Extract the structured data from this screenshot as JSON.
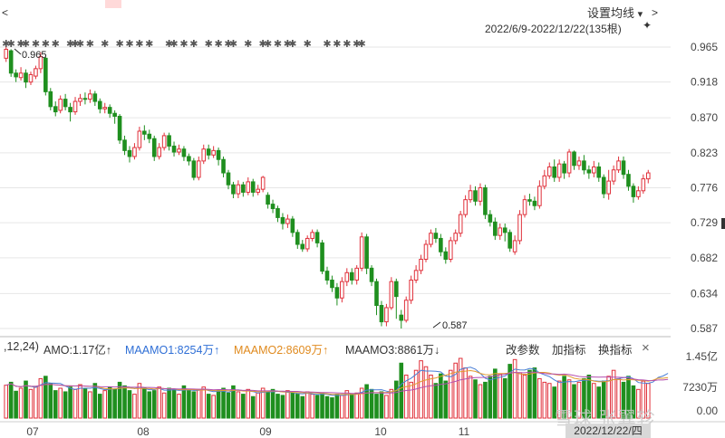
{
  "header": {
    "settings_label": "设置均线",
    "settings_icon": "chevron-down-icon",
    "range_label": "2022/6/9-2022/12/22(135根)",
    "pin_icon": "pin-icon",
    "scroll_left_icon": "chevron-left-icon",
    "scroll_right_icon": "chevron-right-icon"
  },
  "volume_bar": {
    "params": ",12,24)",
    "amo": "AMO:1.17亿↑",
    "maamo1": "MAAMO1:8254万↑",
    "maamo2": "MAAMO2:8609万↑",
    "maamo3": "MAAMO3:8861万↓",
    "btn_params": "改参数",
    "btn_add": "加指标",
    "btn_switch": "换指标",
    "close_icon": "close-icon"
  },
  "date_bubble": "2022/12/22/四",
  "watermark": "雪球 张翼轸",
  "colors": {
    "up": "#e0303a",
    "down": "#1f8f1f",
    "ma1": "#4a7fd6",
    "ma2": "#e39a2e",
    "ma3": "#b44fb0",
    "grid": "#e6e6e6"
  },
  "chart_data": [
    {
      "type": "candlestick",
      "price_axis": {
        "ticks": [
          "0.965",
          "0.918",
          "0.870",
          "0.823",
          "0.776",
          "0.729",
          "0.682",
          "0.634",
          "0.587"
        ],
        "ylim": [
          0.587,
          0.965
        ]
      },
      "x_axis": {
        "labels": [
          "07",
          "08",
          "09",
          "10",
          "11"
        ]
      },
      "annotations": {
        "high": "0.965",
        "low": "0.587"
      },
      "candles": [
        [
          0.95,
          0.962,
          0.965,
          0.945
        ],
        [
          0.96,
          0.93,
          0.962,
          0.925
        ],
        [
          0.93,
          0.925,
          0.935,
          0.918
        ],
        [
          0.924,
          0.93,
          0.938,
          0.92
        ],
        [
          0.93,
          0.918,
          0.935,
          0.91
        ],
        [
          0.918,
          0.928,
          0.932,
          0.914
        ],
        [
          0.926,
          0.936,
          0.94,
          0.922
        ],
        [
          0.936,
          0.952,
          0.958,
          0.93
        ],
        [
          0.95,
          0.905,
          0.952,
          0.9
        ],
        [
          0.905,
          0.885,
          0.91,
          0.88
        ],
        [
          0.885,
          0.878,
          0.892,
          0.872
        ],
        [
          0.88,
          0.895,
          0.9,
          0.876
        ],
        [
          0.895,
          0.885,
          0.902,
          0.88
        ],
        [
          0.884,
          0.878,
          0.89,
          0.865
        ],
        [
          0.878,
          0.892,
          0.898,
          0.874
        ],
        [
          0.892,
          0.896,
          0.902,
          0.886
        ],
        [
          0.896,
          0.895,
          0.904,
          0.888
        ],
        [
          0.895,
          0.902,
          0.908,
          0.89
        ],
        [
          0.902,
          0.892,
          0.906,
          0.886
        ],
        [
          0.892,
          0.882,
          0.896,
          0.876
        ],
        [
          0.882,
          0.884,
          0.89,
          0.876
        ],
        [
          0.884,
          0.876,
          0.888,
          0.87
        ],
        [
          0.876,
          0.872,
          0.88,
          0.862
        ],
        [
          0.872,
          0.84,
          0.875,
          0.835
        ],
        [
          0.84,
          0.826,
          0.846,
          0.82
        ],
        [
          0.826,
          0.818,
          0.832,
          0.81
        ],
        [
          0.818,
          0.83,
          0.836,
          0.814
        ],
        [
          0.83,
          0.852,
          0.858,
          0.826
        ],
        [
          0.852,
          0.848,
          0.86,
          0.84
        ],
        [
          0.848,
          0.842,
          0.854,
          0.836
        ],
        [
          0.842,
          0.818,
          0.846,
          0.812
        ],
        [
          0.818,
          0.83,
          0.836,
          0.814
        ],
        [
          0.83,
          0.846,
          0.85,
          0.826
        ],
        [
          0.846,
          0.832,
          0.85,
          0.826
        ],
        [
          0.832,
          0.824,
          0.838,
          0.818
        ],
        [
          0.824,
          0.828,
          0.834,
          0.82
        ],
        [
          0.828,
          0.818,
          0.832,
          0.812
        ],
        [
          0.818,
          0.812,
          0.822,
          0.806
        ],
        [
          0.812,
          0.79,
          0.816,
          0.786
        ],
        [
          0.79,
          0.812,
          0.818,
          0.786
        ],
        [
          0.812,
          0.828,
          0.834,
          0.808
        ],
        [
          0.828,
          0.82,
          0.834,
          0.814
        ],
        [
          0.82,
          0.826,
          0.832,
          0.816
        ],
        [
          0.826,
          0.814,
          0.83,
          0.806
        ],
        [
          0.814,
          0.796,
          0.818,
          0.79
        ],
        [
          0.796,
          0.78,
          0.8,
          0.774
        ],
        [
          0.78,
          0.768,
          0.784,
          0.762
        ],
        [
          0.768,
          0.78,
          0.786,
          0.762
        ],
        [
          0.78,
          0.77,
          0.784,
          0.764
        ],
        [
          0.77,
          0.784,
          0.79,
          0.766
        ],
        [
          0.784,
          0.77,
          0.788,
          0.764
        ],
        [
          0.77,
          0.774,
          0.78,
          0.766
        ],
        [
          0.774,
          0.79,
          0.792,
          0.77
        ],
        [
          0.766,
          0.754,
          0.77,
          0.748
        ],
        [
          0.754,
          0.748,
          0.76,
          0.742
        ],
        [
          0.748,
          0.736,
          0.752,
          0.73
        ],
        [
          0.736,
          0.728,
          0.742,
          0.72
        ],
        [
          0.728,
          0.734,
          0.74,
          0.722
        ],
        [
          0.734,
          0.716,
          0.738,
          0.71
        ],
        [
          0.716,
          0.7,
          0.72,
          0.694
        ],
        [
          0.7,
          0.694,
          0.706,
          0.69
        ],
        [
          0.694,
          0.708,
          0.712,
          0.69
        ],
        [
          0.708,
          0.716,
          0.72,
          0.704
        ],
        [
          0.716,
          0.702,
          0.72,
          0.696
        ],
        [
          0.702,
          0.664,
          0.706,
          0.66
        ],
        [
          0.664,
          0.652,
          0.67,
          0.646
        ],
        [
          0.652,
          0.642,
          0.658,
          0.636
        ],
        [
          0.642,
          0.628,
          0.648,
          0.618
        ],
        [
          0.628,
          0.65,
          0.656,
          0.622
        ],
        [
          0.65,
          0.662,
          0.668,
          0.644
        ],
        [
          0.662,
          0.652,
          0.668,
          0.646
        ],
        [
          0.652,
          0.668,
          0.672,
          0.646
        ],
        [
          0.668,
          0.71,
          0.716,
          0.664
        ],
        [
          0.71,
          0.668,
          0.714,
          0.66
        ],
        [
          0.668,
          0.65,
          0.672,
          0.644
        ],
        [
          0.65,
          0.618,
          0.654,
          0.605
        ],
        [
          0.618,
          0.596,
          0.624,
          0.59
        ],
        [
          0.596,
          0.615,
          0.62,
          0.59
        ],
        [
          0.615,
          0.65,
          0.656,
          0.612
        ],
        [
          0.65,
          0.63,
          0.654,
          0.6
        ],
        [
          0.605,
          0.598,
          0.612,
          0.587
        ],
        [
          0.598,
          0.625,
          0.63,
          0.595
        ],
        [
          0.625,
          0.652,
          0.658,
          0.62
        ],
        [
          0.652,
          0.665,
          0.672,
          0.648
        ],
        [
          0.665,
          0.68,
          0.686,
          0.66
        ],
        [
          0.68,
          0.7,
          0.706,
          0.676
        ],
        [
          0.7,
          0.715,
          0.72,
          0.696
        ],
        [
          0.715,
          0.708,
          0.722,
          0.702
        ],
        [
          0.708,
          0.69,
          0.714,
          0.684
        ],
        [
          0.69,
          0.68,
          0.696,
          0.674
        ],
        [
          0.68,
          0.705,
          0.71,
          0.676
        ],
        [
          0.705,
          0.715,
          0.72,
          0.7
        ],
        [
          0.715,
          0.74,
          0.745,
          0.71
        ],
        [
          0.74,
          0.76,
          0.766,
          0.736
        ],
        [
          0.76,
          0.772,
          0.78,
          0.756
        ],
        [
          0.772,
          0.758,
          0.778,
          0.752
        ],
        [
          0.758,
          0.776,
          0.782,
          0.752
        ],
        [
          0.776,
          0.74,
          0.78,
          0.734
        ],
        [
          0.74,
          0.73,
          0.746,
          0.724
        ],
        [
          0.73,
          0.712,
          0.736,
          0.706
        ],
        [
          0.712,
          0.722,
          0.728,
          0.706
        ],
        [
          0.722,
          0.716,
          0.728,
          0.704
        ],
        [
          0.716,
          0.695,
          0.72,
          0.69
        ],
        [
          0.69,
          0.705,
          0.712,
          0.686
        ],
        [
          0.705,
          0.74,
          0.746,
          0.7
        ],
        [
          0.74,
          0.76,
          0.766,
          0.736
        ],
        [
          0.76,
          0.758,
          0.768,
          0.752
        ],
        [
          0.758,
          0.752,
          0.764,
          0.746
        ],
        [
          0.752,
          0.778,
          0.786,
          0.748
        ],
        [
          0.778,
          0.792,
          0.8,
          0.774
        ],
        [
          0.792,
          0.804,
          0.81,
          0.788
        ],
        [
          0.804,
          0.79,
          0.814,
          0.784
        ],
        [
          0.79,
          0.808,
          0.814,
          0.784
        ],
        [
          0.808,
          0.796,
          0.812,
          0.788
        ],
        [
          0.796,
          0.824,
          0.828,
          0.79
        ],
        [
          0.824,
          0.806,
          0.826,
          0.8
        ],
        [
          0.806,
          0.812,
          0.818,
          0.8
        ],
        [
          0.812,
          0.8,
          0.82,
          0.794
        ],
        [
          0.8,
          0.796,
          0.806,
          0.788
        ],
        [
          0.796,
          0.804,
          0.812,
          0.79
        ],
        [
          0.804,
          0.79,
          0.81,
          0.784
        ],
        [
          0.79,
          0.768,
          0.794,
          0.762
        ],
        [
          0.768,
          0.785,
          0.8,
          0.76
        ],
        [
          0.785,
          0.8,
          0.806,
          0.78
        ],
        [
          0.8,
          0.812,
          0.818,
          0.796
        ],
        [
          0.812,
          0.794,
          0.818,
          0.788
        ],
        [
          0.794,
          0.778,
          0.8,
          0.772
        ],
        [
          0.778,
          0.764,
          0.782,
          0.756
        ],
        [
          0.764,
          0.772,
          0.778,
          0.76
        ],
        [
          0.772,
          0.788,
          0.794,
          0.768
        ],
        [
          0.788,
          0.796,
          0.8,
          0.782
        ]
      ],
      "marker_rows": "xx xx x x x  xxx x  x  x x x x   xx x x  x x xx  x  xx x xx  x   x x x xx"
    },
    {
      "type": "bar",
      "volume_axis": {
        "ticks": [
          "1.45亿",
          "7230万",
          "0.00"
        ]
      },
      "volume": [
        0.55,
        0.6,
        0.45,
        0.5,
        0.62,
        0.48,
        0.52,
        0.66,
        0.7,
        0.58,
        0.46,
        0.5,
        0.44,
        0.52,
        0.48,
        0.56,
        0.5,
        0.44,
        0.58,
        0.4,
        0.46,
        0.52,
        0.48,
        0.6,
        0.54,
        0.46,
        0.4,
        0.58,
        0.5,
        0.44,
        0.46,
        0.52,
        0.42,
        0.5,
        0.48,
        0.4,
        0.54,
        0.46,
        0.44,
        0.48,
        0.52,
        0.4,
        0.38,
        0.46,
        0.5,
        0.42,
        0.54,
        0.44,
        0.4,
        0.48,
        0.36,
        0.42,
        0.5,
        0.44,
        0.48,
        0.4,
        0.38,
        0.46,
        0.42,
        0.4,
        0.36,
        0.44,
        0.4,
        0.38,
        0.42,
        0.36,
        0.34,
        0.4,
        0.38,
        0.46,
        0.4,
        0.42,
        0.5,
        0.56,
        0.48,
        0.4,
        0.44,
        0.38,
        0.48,
        0.62,
        0.92,
        0.72,
        0.6,
        0.8,
        0.96,
        0.86,
        0.72,
        0.58,
        0.74,
        0.62,
        0.8,
        0.92,
        1.0,
        0.84,
        0.7,
        0.64,
        0.56,
        0.6,
        0.7,
        0.82,
        0.74,
        0.66,
        0.9,
        0.98,
        0.76,
        0.72,
        0.8,
        0.84,
        0.66,
        0.6,
        0.58,
        0.52,
        0.62,
        0.7,
        0.64,
        0.56,
        0.6,
        0.66,
        0.72,
        0.58,
        0.52,
        0.62,
        0.7,
        0.8,
        0.66,
        0.6,
        0.7,
        0.54,
        0.48,
        0.62,
        0.58,
        0.8,
        0.92,
        0.6,
        0.84
      ]
    }
  ]
}
